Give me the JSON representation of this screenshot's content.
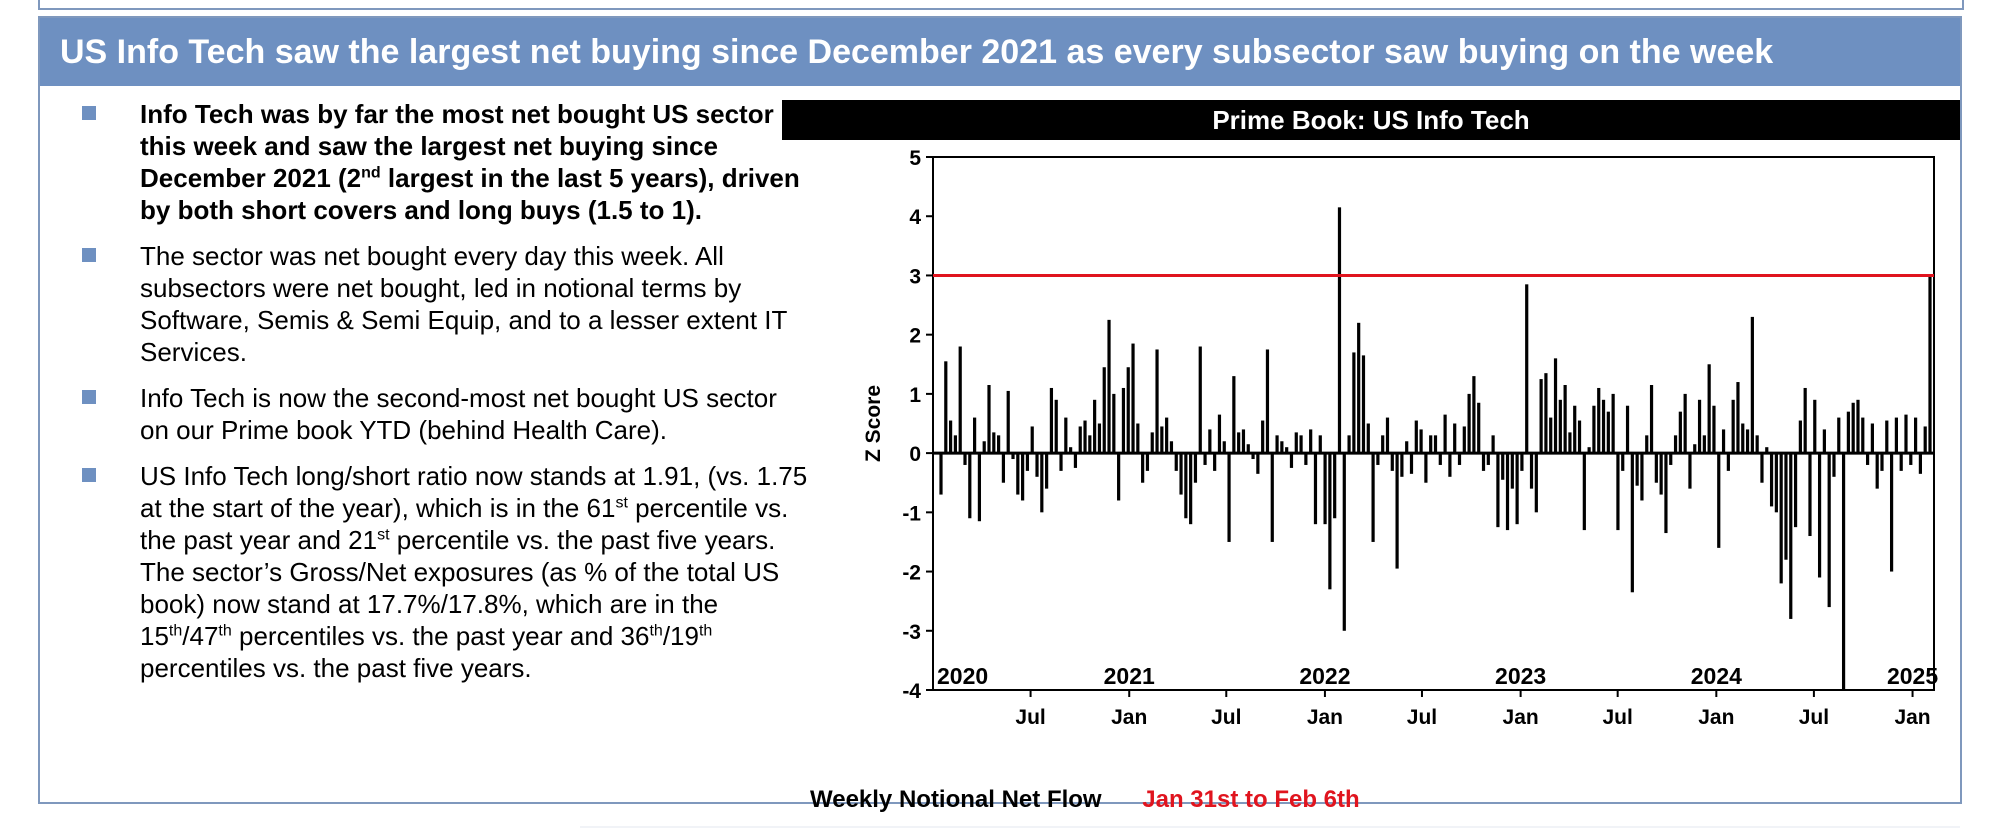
{
  "banner": {
    "title": "US Info Tech saw the largest net buying since December 2021 as every subsector saw buying on the week"
  },
  "bullets": [
    {
      "bold": true,
      "text_a": "Info Tech was by far the most net bought US sector this week and saw the largest net buying since December 2021 (2",
      "sup_a": "nd",
      "text_b": " largest in the last 5 years), driven by both short covers and long buys (1.5 to 1)."
    },
    {
      "bold": false,
      "text_a": "The sector was net bought every day this week. All subsectors were net bought, led in notional terms by Software, Semis & Semi Equip, and to a lesser extent IT Services."
    },
    {
      "bold": false,
      "text_a": "Info Tech is now the second-most net bought US sector on our Prime book YTD (behind Health Care)."
    },
    {
      "bold": false,
      "text_a": "US Info Tech long/short ratio now stands at 1.91, (vs. 1.75 at the start of the year), which is in the 61",
      "sup_a": "st",
      "text_b": " percentile vs. the past year and 21",
      "sup_b": "st",
      "text_c": " percentile vs. the past five years. The sector’s Gross/Net exposures (as % of the total US book) now stand at 17.7%/17.8%, which are in the 15",
      "sup_c": "th",
      "text_d": "/47",
      "sup_d": "th",
      "text_e": " percentiles vs. the past year and 36",
      "sup_e": "th",
      "text_f": "/19",
      "sup_f": "th",
      "text_g": " percentiles vs. the past five years."
    }
  ],
  "colors": {
    "banner": "#6e90c1",
    "bullet_mark": "#6e90c1",
    "threshold_line": "#e0141e",
    "bars": "#000000",
    "footer_period": "#e0141e"
  },
  "chart_data": {
    "type": "bar",
    "title": "Prime Book: US Info Tech",
    "ylabel": "Z Score",
    "xlabel": "",
    "ylim": [
      -4,
      5
    ],
    "yticks": [
      "5",
      "4",
      "3",
      "2",
      "1",
      "0",
      "-1",
      "-2",
      "-3",
      "-4"
    ],
    "xlim": [
      "2020-01-01",
      "2025-02-10"
    ],
    "year_labels": [
      "2020",
      "2021",
      "2022",
      "2023",
      "2024",
      "2025"
    ],
    "month_labels": [
      {
        "date": "2020-07-01",
        "label": "Jul"
      },
      {
        "date": "2021-01-01",
        "label": "Jan"
      },
      {
        "date": "2021-07-01",
        "label": "Jul"
      },
      {
        "date": "2022-01-01",
        "label": "Jan"
      },
      {
        "date": "2022-07-01",
        "label": "Jul"
      },
      {
        "date": "2023-01-01",
        "label": "Jan"
      },
      {
        "date": "2023-07-01",
        "label": "Jul"
      },
      {
        "date": "2024-01-01",
        "label": "Jan"
      },
      {
        "date": "2024-07-01",
        "label": "Jul"
      },
      {
        "date": "2025-01-01",
        "label": "Jan"
      }
    ],
    "threshold": 3,
    "grid": false,
    "series": [
      {
        "values": [
          -0.7,
          1.55,
          0.55,
          0.3,
          1.8,
          -0.2,
          -1.1,
          0.6,
          -1.15,
          0.2,
          1.15,
          0.35,
          0.3,
          -0.5,
          1.05,
          -0.1,
          -0.7,
          -0.8,
          -0.3,
          0.45,
          -0.4,
          -1.0,
          -0.6,
          1.1,
          0.9,
          -0.3,
          0.6,
          0.1,
          -0.25,
          0.45,
          0.55,
          0.3,
          0.9,
          0.5,
          1.45,
          2.25,
          1.0,
          -0.8,
          1.1,
          1.45,
          1.85,
          0.5,
          -0.5,
          -0.3,
          0.35,
          1.75,
          0.45,
          0.6,
          0.2,
          -0.3,
          -0.7,
          -1.1,
          -1.2,
          -0.5,
          1.8,
          -0.2,
          0.4,
          -0.3,
          0.65,
          0.2,
          -1.5,
          1.3,
          0.35,
          0.4,
          0.15,
          -0.1,
          -0.35,
          0.55,
          1.75,
          -1.5,
          0.3,
          0.2,
          0.1,
          -0.25,
          0.35,
          0.3,
          -0.2,
          0.4,
          -1.2,
          0.3,
          -1.2,
          -2.3,
          -1.1,
          4.15,
          -3.0,
          0.3,
          1.7,
          2.2,
          1.65,
          0.5,
          -1.5,
          -0.2,
          0.3,
          0.6,
          -0.3,
          -1.95,
          -0.4,
          0.2,
          -0.35,
          0.55,
          0.4,
          -0.5,
          0.3,
          0.3,
          -0.2,
          0.65,
          -0.4,
          0.5,
          -0.2,
          0.45,
          1.0,
          1.3,
          0.85,
          -0.3,
          -0.2,
          0.3,
          -1.25,
          -0.45,
          -1.3,
          -0.6,
          -1.2,
          -0.3,
          2.85,
          -0.6,
          -1.0,
          1.25,
          1.35,
          0.6,
          1.6,
          0.9,
          1.15,
          0.35,
          0.8,
          0.55,
          -1.3,
          0.1,
          0.8,
          1.1,
          0.9,
          0.7,
          1.0,
          -1.3,
          -0.3,
          0.8,
          -2.35,
          -0.55,
          -0.8,
          0.3,
          1.15,
          -0.5,
          -0.7,
          -1.35,
          -0.2,
          0.3,
          0.7,
          1.0,
          -0.6,
          0.15,
          0.9,
          0.3,
          1.5,
          0.8,
          -1.6,
          0.4,
          -0.3,
          0.9,
          1.2,
          0.5,
          0.4,
          2.3,
          0.3,
          -0.5,
          0.1,
          -0.9,
          -1.0,
          -2.2,
          -1.8,
          -2.8,
          -1.25,
          0.55,
          1.1,
          -1.4,
          0.9,
          -2.1,
          0.4,
          -2.6,
          -0.4,
          0.6,
          -4.0,
          0.7,
          0.85,
          0.9,
          0.6,
          -0.2,
          0.5,
          -0.6,
          -0.3,
          0.55,
          -2.0,
          0.6,
          -0.3,
          0.65,
          -0.2,
          0.6,
          -0.35,
          0.45,
          3.0
        ],
        "color": "#000000"
      }
    ],
    "footer_label": "Weekly Notional Net Flow",
    "footer_period": "Jan 31st to Feb 6th"
  }
}
